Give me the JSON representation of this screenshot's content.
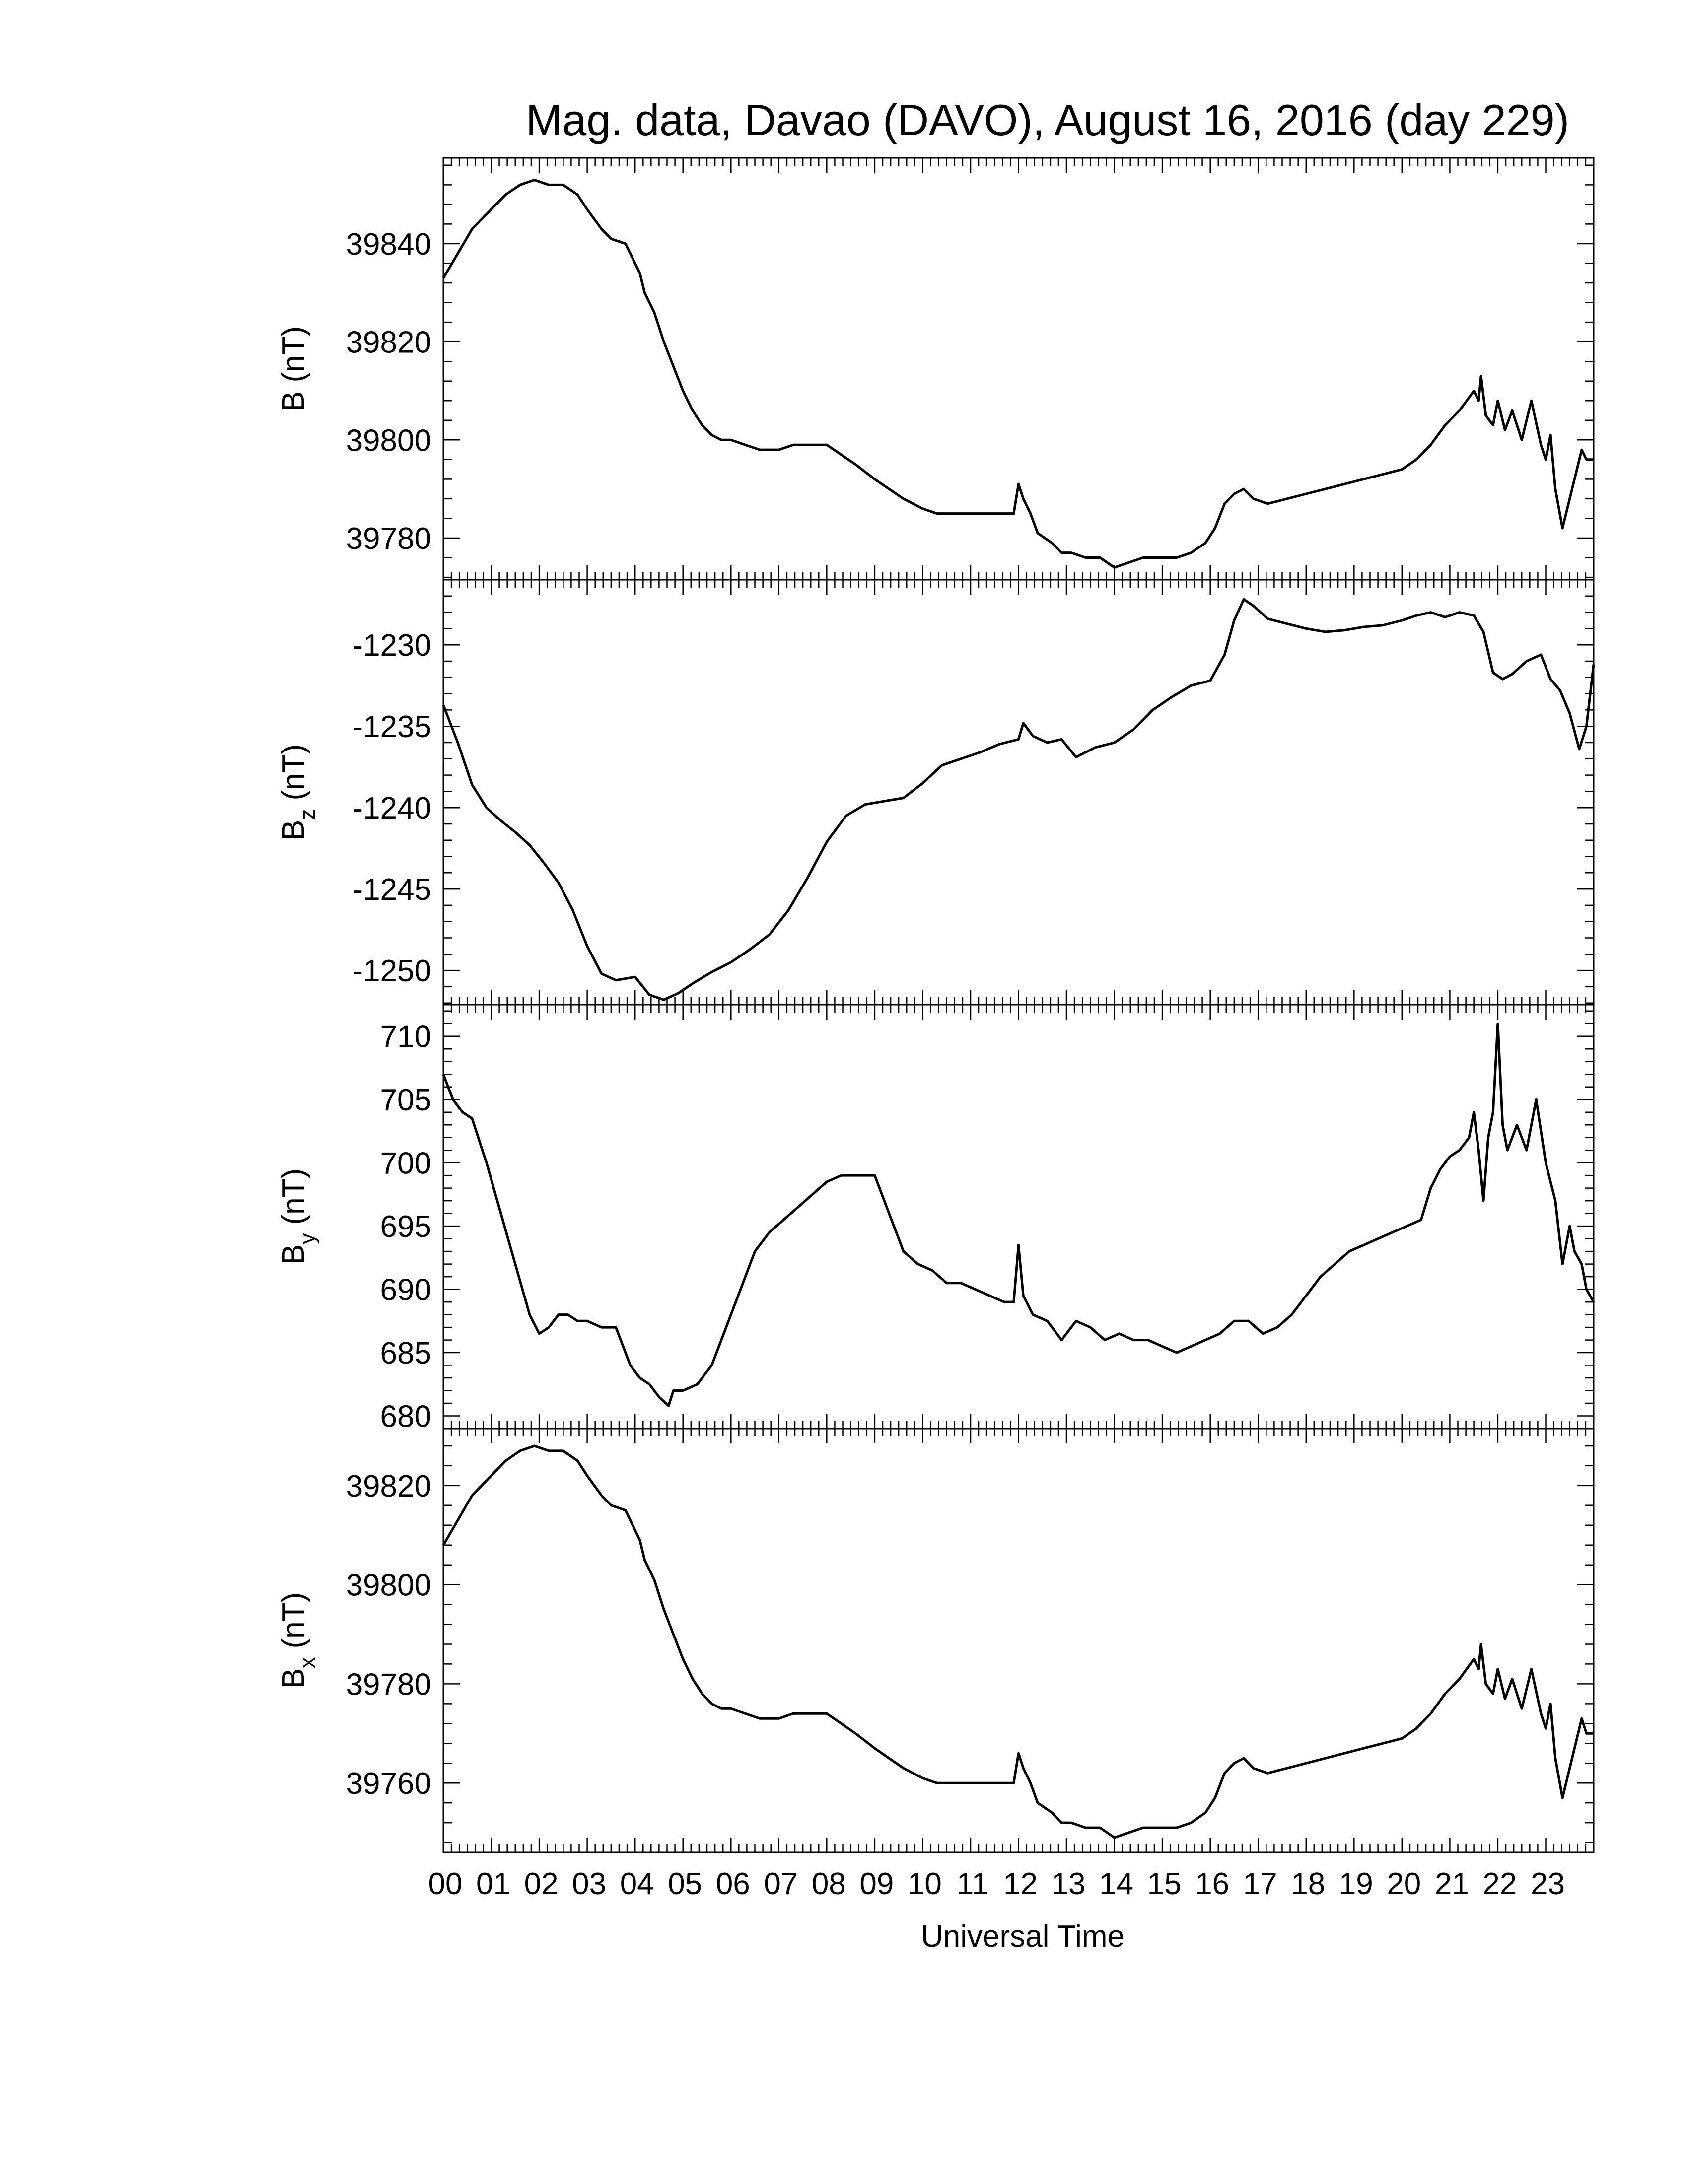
{
  "chart_data": {
    "title": "Mag. data, Davao (DAVO), August 16, 2016 (day 229)",
    "xlabel": "Universal Time",
    "xlim": [
      0,
      24
    ],
    "x_tick_labels": [
      "00",
      "01",
      "02",
      "03",
      "04",
      "05",
      "06",
      "07",
      "08",
      "09",
      "10",
      "11",
      "12",
      "13",
      "14",
      "15",
      "16",
      "17",
      "18",
      "19",
      "20",
      "21",
      "22",
      "23"
    ],
    "panels": [
      {
        "type": "line",
        "ylabel_main": "B",
        "ylabel_sub": "",
        "ylabel_unit": "(nT)",
        "ylim": [
          39771.5,
          39857.5
        ],
        "yticks": [
          39780,
          39800,
          39820,
          39840
        ],
        "ytick_labels": [
          "39780",
          "39800",
          "39820",
          "39840"
        ],
        "series": [
          {
            "x": [
              0,
              0.3,
              0.6,
              1,
              1.3,
              1.6,
              1.9,
              2.2,
              2.5,
              2.8,
              3.0,
              3.3,
              3.5,
              3.8,
              4.1,
              4.2,
              4.4,
              4.6,
              4.8,
              5.0,
              5.2,
              5.4,
              5.6,
              5.8,
              6.0,
              6.3,
              6.6,
              7.0,
              7.3,
              7.6,
              8.0,
              8.3,
              8.6,
              9.0,
              9.3,
              9.6,
              10.0,
              10.3,
              10.6,
              11.0,
              11.3,
              11.6,
              11.9,
              12.0,
              12.1,
              12.25,
              12.4,
              12.7,
              12.9,
              13.1,
              13.4,
              13.7,
              14.0,
              14.3,
              14.6,
              15.0,
              15.3,
              15.6,
              15.9,
              16.1,
              16.3,
              16.5,
              16.7,
              16.9,
              17.2,
              17.6,
              18.0,
              18.4,
              18.8,
              19.2,
              19.6,
              20.0,
              20.3,
              20.6,
              20.9,
              21.2,
              21.5,
              21.6,
              21.65,
              21.75,
              21.9,
              22.0,
              22.15,
              22.3,
              22.5,
              22.7,
              22.9,
              23.0,
              23.1,
              23.2,
              23.35,
              23.5,
              23.6,
              23.75,
              23.85,
              24.0
            ],
            "y": [
              39833,
              39838,
              39843,
              39847,
              39850,
              39852,
              39853,
              39852,
              39852,
              39850,
              39847,
              39843,
              39841,
              39840,
              39834,
              39830,
              39826,
              39820,
              39815,
              39810,
              39806,
              39803,
              39801,
              39800,
              39800,
              39799,
              39798,
              39798,
              39799,
              39799,
              39799,
              39797,
              39795,
              39792,
              39790,
              39788,
              39786,
              39785,
              39785,
              39785,
              39785,
              39785,
              39785,
              39791,
              39788,
              39785,
              39781,
              39779,
              39777,
              39777,
              39776,
              39776,
              39774,
              39775,
              39776,
              39776,
              39776,
              39777,
              39779,
              39782,
              39787,
              39789,
              39790,
              39788,
              39787,
              39788,
              39789,
              39790,
              39791,
              39792,
              39793,
              39794,
              39796,
              39799,
              39803,
              39806,
              39810,
              39808,
              39813,
              39805,
              39803,
              39808,
              39802,
              39806,
              39800,
              39808,
              39799,
              39796,
              39801,
              39790,
              39782,
              39788,
              39792,
              39798,
              39796,
              39796
            ]
          }
        ]
      },
      {
        "type": "line",
        "ylabel_main": "B",
        "ylabel_sub": "z",
        "ylabel_unit": "(nT)",
        "ylim": [
          -1252.1,
          -1226.0
        ],
        "yticks": [
          -1250,
          -1245,
          -1240,
          -1235,
          -1230
        ],
        "ytick_labels": [
          "-1250",
          "-1245",
          "-1240",
          "-1235",
          "-1230"
        ],
        "series": [
          {
            "x": [
              0,
              0.3,
              0.6,
              0.9,
              1.2,
              1.5,
              1.8,
              2.1,
              2.4,
              2.7,
              3.0,
              3.3,
              3.6,
              4.0,
              4.3,
              4.6,
              4.9,
              5.2,
              5.6,
              6.0,
              6.4,
              6.8,
              7.2,
              7.6,
              8.0,
              8.4,
              8.8,
              9.2,
              9.6,
              10.0,
              10.4,
              10.8,
              11.2,
              11.6,
              12.0,
              12.1,
              12.3,
              12.6,
              12.9,
              13.2,
              13.6,
              14.0,
              14.4,
              14.8,
              15.2,
              15.6,
              16.0,
              16.3,
              16.5,
              16.7,
              16.9,
              17.2,
              17.6,
              18.0,
              18.4,
              18.8,
              19.2,
              19.6,
              20.0,
              20.3,
              20.6,
              20.9,
              21.2,
              21.5,
              21.7,
              21.9,
              22.1,
              22.3,
              22.6,
              22.9,
              23.1,
              23.3,
              23.5,
              23.7,
              23.85,
              24.0
            ],
            "y": [
              -1233.7,
              -1236,
              -1238.6,
              -1240,
              -1240.8,
              -1241.5,
              -1242.3,
              -1243.4,
              -1244.6,
              -1246.3,
              -1248.5,
              -1250.2,
              -1250.6,
              -1250.4,
              -1251.5,
              -1251.8,
              -1251.4,
              -1250.8,
              -1250.1,
              -1249.5,
              -1248.7,
              -1247.8,
              -1246.3,
              -1244.3,
              -1242.1,
              -1240.5,
              -1239.8,
              -1239.6,
              -1239.4,
              -1238.5,
              -1237.4,
              -1237,
              -1236.6,
              -1236.1,
              -1235.8,
              -1234.8,
              -1235.6,
              -1236,
              -1235.8,
              -1236.9,
              -1236.3,
              -1236,
              -1235.2,
              -1234,
              -1233.2,
              -1232.5,
              -1232.2,
              -1230.6,
              -1228.5,
              -1227.2,
              -1227.6,
              -1228.4,
              -1228.7,
              -1229,
              -1229.2,
              -1229.1,
              -1228.9,
              -1228.8,
              -1228.5,
              -1228.2,
              -1228,
              -1228.3,
              -1228,
              -1228.2,
              -1229.2,
              -1231.7,
              -1232.1,
              -1231.8,
              -1231,
              -1230.6,
              -1232.1,
              -1232.8,
              -1234.2,
              -1236.4,
              -1235,
              -1231.2
            ]
          }
        ]
      },
      {
        "type": "line",
        "ylabel_main": "B",
        "ylabel_sub": "y",
        "ylabel_unit": "(nT)",
        "ylim": [
          679.0,
          712.5
        ],
        "yticks": [
          680,
          685,
          690,
          695,
          700,
          705,
          710
        ],
        "ytick_labels": [
          "680",
          "685",
          "690",
          "695",
          "700",
          "705",
          "710"
        ],
        "series": [
          {
            "x": [
              0,
              0.2,
              0.4,
              0.6,
              0.9,
              1.2,
              1.5,
              1.8,
              2.0,
              2.2,
              2.4,
              2.6,
              2.8,
              3.0,
              3.3,
              3.6,
              3.9,
              4.1,
              4.3,
              4.5,
              4.7,
              4.8,
              5.0,
              5.3,
              5.6,
              5.9,
              6.2,
              6.5,
              6.8,
              7.1,
              7.4,
              7.7,
              8.0,
              8.3,
              8.6,
              9.0,
              9.3,
              9.6,
              9.9,
              10.2,
              10.5,
              10.8,
              11.1,
              11.4,
              11.7,
              11.9,
              12.0,
              12.1,
              12.3,
              12.6,
              12.9,
              13.2,
              13.5,
              13.8,
              14.1,
              14.4,
              14.7,
              15.0,
              15.3,
              15.6,
              15.9,
              16.2,
              16.5,
              16.8,
              17.1,
              17.4,
              17.7,
              18.0,
              18.3,
              18.6,
              18.9,
              19.2,
              19.5,
              19.8,
              20.1,
              20.4,
              20.6,
              20.8,
              21.0,
              21.2,
              21.4,
              21.5,
              21.6,
              21.7,
              21.8,
              21.9,
              22.0,
              22.1,
              22.2,
              22.4,
              22.6,
              22.8,
              23.0,
              23.2,
              23.35,
              23.5,
              23.6,
              23.75,
              23.85,
              24.0
            ],
            "y": [
              707,
              705,
              704,
              703.5,
              700,
              696,
              692,
              688,
              686.5,
              687,
              688,
              688,
              687.5,
              687.5,
              687,
              687,
              684,
              683,
              682.5,
              681.5,
              680.8,
              682,
              682,
              682.5,
              684,
              687,
              690,
              693,
              694.5,
              695.5,
              696.5,
              697.5,
              698.5,
              699,
              699,
              699,
              696,
              693,
              692,
              691.5,
              690.5,
              690.5,
              690,
              689.5,
              689,
              689,
              693.5,
              689.5,
              688,
              687.5,
              686,
              687.5,
              687,
              686,
              686.5,
              686,
              686,
              685.5,
              685,
              685.5,
              686,
              686.5,
              687.5,
              687.5,
              686.5,
              687,
              688,
              689.5,
              691,
              692,
              693,
              693.5,
              694,
              694.5,
              695,
              695.5,
              698,
              699.5,
              700.5,
              701,
              702,
              704,
              701,
              697,
              702,
              704,
              711,
              703,
              701,
              703,
              701,
              705,
              700,
              697,
              692,
              695,
              693,
              692,
              690,
              689
            ]
          }
        ]
      },
      {
        "type": "line",
        "ylabel_main": "B",
        "ylabel_sub": "x",
        "ylabel_unit": "(nT)",
        "ylim": [
          39746.0,
          39831.5
        ],
        "yticks": [
          39760,
          39780,
          39800,
          39820
        ],
        "ytick_labels": [
          "39760",
          "39780",
          "39800",
          "39820"
        ],
        "series": [
          {
            "x": [
              0,
              0.3,
              0.6,
              1,
              1.3,
              1.6,
              1.9,
              2.2,
              2.5,
              2.8,
              3.0,
              3.3,
              3.5,
              3.8,
              4.1,
              4.2,
              4.4,
              4.6,
              4.8,
              5.0,
              5.2,
              5.4,
              5.6,
              5.8,
              6.0,
              6.3,
              6.6,
              7.0,
              7.3,
              7.6,
              8.0,
              8.3,
              8.6,
              9.0,
              9.3,
              9.6,
              10.0,
              10.3,
              10.6,
              11.0,
              11.3,
              11.6,
              11.9,
              12.0,
              12.1,
              12.25,
              12.4,
              12.7,
              12.9,
              13.1,
              13.4,
              13.7,
              14.0,
              14.3,
              14.6,
              15.0,
              15.3,
              15.6,
              15.9,
              16.1,
              16.3,
              16.5,
              16.7,
              16.9,
              17.2,
              17.6,
              18.0,
              18.4,
              18.8,
              19.2,
              19.6,
              20.0,
              20.3,
              20.6,
              20.9,
              21.2,
              21.5,
              21.6,
              21.65,
              21.75,
              21.9,
              22.0,
              22.15,
              22.3,
              22.5,
              22.7,
              22.9,
              23.0,
              23.1,
              23.2,
              23.35,
              23.5,
              23.6,
              23.75,
              23.85,
              24.0
            ],
            "y": [
              39808,
              39813,
              39818,
              39822,
              39825,
              39827,
              39828,
              39827,
              39827,
              39825,
              39822,
              39818,
              39816,
              39815,
              39809,
              39805,
              39801,
              39795,
              39790,
              39785,
              39781,
              39778,
              39776,
              39775,
              39775,
              39774,
              39773,
              39773,
              39774,
              39774,
              39774,
              39772,
              39770,
              39767,
              39765,
              39763,
              39761,
              39760,
              39760,
              39760,
              39760,
              39760,
              39760,
              39766,
              39763,
              39760,
              39756,
              39754,
              39752,
              39752,
              39751,
              39751,
              39749,
              39750,
              39751,
              39751,
              39751,
              39752,
              39754,
              39757,
              39762,
              39764,
              39765,
              39763,
              39762,
              39763,
              39764,
              39765,
              39766,
              39767,
              39768,
              39769,
              39771,
              39774,
              39778,
              39781,
              39785,
              39783,
              39788,
              39780,
              39778,
              39783,
              39777,
              39781,
              39775,
              39783,
              39774,
              39771,
              39776,
              39765,
              39757,
              39763,
              39767,
              39773,
              39770,
              39770
            ]
          }
        ]
      }
    ]
  }
}
